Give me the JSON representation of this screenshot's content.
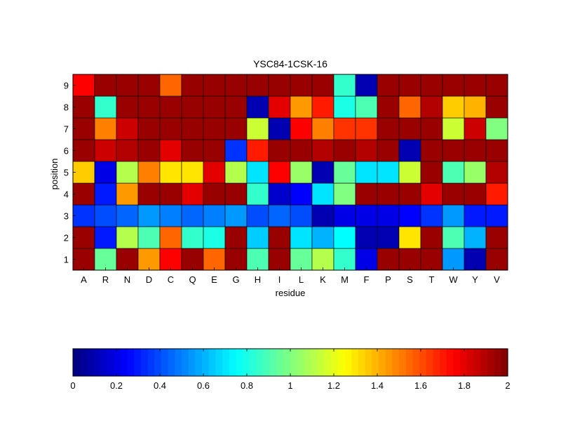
{
  "chart_data": {
    "type": "heatmap",
    "title": "YSC84-1CSK-16",
    "xlabel": "residue",
    "ylabel": "position",
    "x_categories": [
      "A",
      "R",
      "N",
      "D",
      "C",
      "Q",
      "E",
      "G",
      "H",
      "I",
      "L",
      "K",
      "M",
      "F",
      "P",
      "S",
      "T",
      "W",
      "Y",
      "V"
    ],
    "y_categories": [
      "1",
      "2",
      "3",
      "4",
      "5",
      "6",
      "7",
      "8",
      "9"
    ],
    "colormap": "jet",
    "clim": [
      0,
      2
    ],
    "values": [
      [
        1.95,
        0.95,
        1.95,
        1.45,
        1.75,
        1.95,
        1.55,
        1.95,
        0.9,
        1.95,
        0.95,
        1.1,
        0.85,
        0.2,
        1.95,
        1.95,
        1.95,
        0.55,
        0.1,
        1.95
      ],
      [
        1.95,
        0.3,
        1.1,
        0.9,
        1.55,
        0.85,
        0.8,
        1.95,
        0.65,
        1.95,
        0.7,
        0.6,
        0.75,
        0.1,
        0.1,
        1.3,
        1.95,
        0.9,
        0.6,
        1.95
      ],
      [
        0.35,
        0.4,
        0.45,
        0.55,
        0.5,
        0.45,
        0.5,
        0.55,
        0.4,
        0.45,
        0.4,
        0.1,
        0.2,
        0.2,
        0.2,
        0.25,
        0.35,
        0.55,
        0.3,
        0.3
      ],
      [
        1.95,
        0.3,
        1.45,
        1.95,
        1.95,
        1.8,
        1.95,
        1.95,
        0.85,
        0.15,
        0.25,
        0.7,
        1.0,
        1.95,
        1.95,
        1.95,
        1.8,
        1.95,
        1.95,
        1.7
      ],
      [
        1.35,
        0.2,
        1.1,
        1.5,
        1.3,
        1.3,
        1.8,
        1.1,
        0.7,
        1.75,
        1.05,
        0.1,
        0.95,
        0.7,
        0.7,
        1.15,
        1.95,
        0.9,
        1.05,
        1.9
      ],
      [
        1.95,
        1.85,
        1.9,
        1.95,
        1.8,
        1.95,
        1.95,
        0.35,
        1.7,
        1.95,
        1.95,
        1.9,
        1.95,
        1.9,
        1.95,
        0.1,
        1.95,
        1.95,
        1.95,
        1.95
      ],
      [
        1.95,
        1.5,
        1.85,
        1.95,
        1.95,
        1.95,
        1.95,
        1.95,
        1.15,
        0.1,
        1.75,
        1.5,
        1.65,
        1.65,
        1.95,
        1.95,
        1.95,
        1.15,
        1.85,
        1.0
      ],
      [
        1.95,
        0.85,
        1.95,
        1.95,
        1.95,
        1.95,
        1.95,
        1.95,
        0.1,
        1.8,
        1.45,
        1.7,
        0.8,
        0.9,
        1.95,
        1.55,
        1.9,
        1.35,
        1.4,
        1.95
      ],
      [
        1.75,
        1.95,
        1.95,
        1.95,
        1.55,
        1.95,
        1.95,
        1.95,
        1.95,
        1.95,
        1.95,
        1.95,
        0.85,
        0.1,
        1.95,
        1.95,
        1.95,
        1.95,
        1.95,
        1.95
      ]
    ],
    "colorbar_ticks": [
      "0",
      "0.2",
      "0.4",
      "0.6",
      "0.8",
      "1",
      "1.2",
      "1.4",
      "1.6",
      "1.8",
      "2"
    ],
    "grid": true,
    "legend": "colorbar-bottom"
  }
}
